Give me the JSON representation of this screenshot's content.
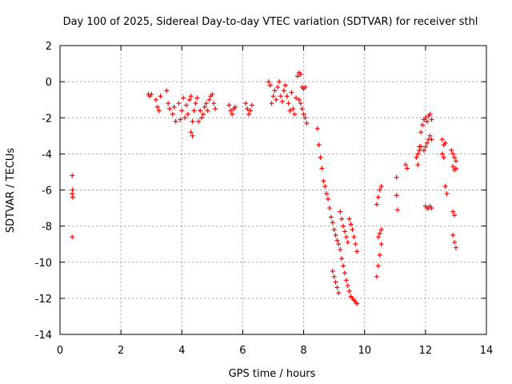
{
  "chart_data": {
    "type": "scatter",
    "title": "Day 100 of 2025, Sidereal Day-to-day VTEC variation (SDTVAR) for receiver sthl",
    "xlabel": "GPS time / hours",
    "ylabel": "SDTVAR / TECUs",
    "xlim": [
      0,
      14
    ],
    "ylim": [
      -14,
      2
    ],
    "xticks": [
      0,
      2,
      4,
      6,
      8,
      10,
      12,
      14
    ],
    "yticks": [
      2,
      0,
      -2,
      -4,
      -6,
      -8,
      -10,
      -12,
      -14
    ],
    "grid": true,
    "marker": "+",
    "color": "#ff0000",
    "series": [
      {
        "name": "SDTVAR",
        "x": [
          0.4,
          0.41,
          0.4,
          0.42,
          0.4,
          2.9,
          2.95,
          3.0,
          3.15,
          3.2,
          3.25,
          3.3,
          3.5,
          3.55,
          3.6,
          3.7,
          3.75,
          3.8,
          3.9,
          3.95,
          4.0,
          4.05,
          4.1,
          4.15,
          4.2,
          4.25,
          4.3,
          4.35,
          4.4,
          4.45,
          4.5,
          4.3,
          4.35,
          4.55,
          4.6,
          4.65,
          4.7,
          4.75,
          4.8,
          4.85,
          4.9,
          4.95,
          5.0,
          5.05,
          5.1,
          5.55,
          5.6,
          5.65,
          5.7,
          5.75,
          6.1,
          6.15,
          6.2,
          6.25,
          6.3,
          6.85,
          6.9,
          6.95,
          7.0,
          7.05,
          7.1,
          7.15,
          7.2,
          7.25,
          7.3,
          7.35,
          7.4,
          7.45,
          7.5,
          7.55,
          7.6,
          7.65,
          7.7,
          7.75,
          7.8,
          7.85,
          7.9,
          7.95,
          8.0,
          8.05,
          7.85,
          7.9,
          7.95,
          8.0,
          8.05,
          8.1,
          8.45,
          8.5,
          8.55,
          8.6,
          8.65,
          8.7,
          8.75,
          8.8,
          8.85,
          8.9,
          8.95,
          9.0,
          9.05,
          9.1,
          9.15,
          9.2,
          9.25,
          9.3,
          9.35,
          9.4,
          9.45,
          9.5,
          9.55,
          9.6,
          9.65,
          9.7,
          9.75,
          9.2,
          9.25,
          9.3,
          9.35,
          9.4,
          9.45,
          9.5,
          9.55,
          9.6,
          9.65,
          9.7,
          9.75,
          8.95,
          9.0,
          9.05,
          9.1,
          9.15,
          10.4,
          10.45,
          10.5,
          10.55,
          10.45,
          10.5,
          10.55,
          10.4,
          10.45,
          10.5,
          10.55,
          11.05,
          11.05,
          11.08,
          11.35,
          11.4,
          11.75,
          11.8,
          11.85,
          11.9,
          11.95,
          12.0,
          12.05,
          12.1,
          12.15,
          12.2,
          11.7,
          11.75,
          11.8,
          11.85,
          11.95,
          12.0,
          12.05,
          12.1,
          12.15,
          12.2,
          12.0,
          12.05,
          12.1,
          12.15,
          12.2,
          12.55,
          12.6,
          12.65,
          12.55,
          12.6,
          12.65,
          12.7,
          12.85,
          12.9,
          12.95,
          13.0,
          12.9,
          12.95,
          13.0,
          12.9,
          12.95,
          12.9,
          12.95,
          13.0
        ],
        "y": [
          -5.2,
          -6.0,
          -6.2,
          -6.4,
          -8.6,
          -0.7,
          -0.8,
          -0.7,
          -1.0,
          -1.4,
          -1.6,
          -0.8,
          -0.5,
          -1.2,
          -1.5,
          -1.8,
          -1.4,
          -2.2,
          -1.2,
          -2.1,
          -1.6,
          -0.9,
          -2.0,
          -1.3,
          -1.8,
          -1.0,
          -0.8,
          -2.2,
          -1.6,
          -1.2,
          -0.9,
          -2.8,
          -3.0,
          -2.2,
          -1.6,
          -2.0,
          -1.8,
          -1.4,
          -1.2,
          -1.6,
          -1.0,
          -0.8,
          -0.7,
          -1.2,
          -1.5,
          -1.3,
          -1.6,
          -1.8,
          -1.5,
          -1.4,
          -1.2,
          -1.5,
          -1.8,
          -1.6,
          -1.3,
          0.0,
          -0.2,
          -1.2,
          -0.8,
          -0.5,
          -1.0,
          -0.3,
          0.0,
          -0.8,
          -1.1,
          -0.5,
          -0.2,
          -0.8,
          -1.2,
          -1.6,
          -0.6,
          -1.5,
          -1.8,
          -0.9,
          0.3,
          0.5,
          0.4,
          -0.3,
          -0.4,
          -0.3,
          -1.0,
          -1.2,
          -1.5,
          -1.8,
          -2.0,
          -2.3,
          -2.6,
          -3.5,
          -4.2,
          -4.8,
          -5.5,
          -5.8,
          -6.2,
          -6.5,
          -7.0,
          -7.5,
          -7.8,
          -8.2,
          -8.5,
          -8.8,
          -9.0,
          -9.3,
          -9.8,
          -10.2,
          -10.6,
          -11.0,
          -11.3,
          -11.6,
          -11.9,
          -12.0,
          -12.1,
          -12.2,
          -12.3,
          -7.2,
          -7.6,
          -8.0,
          -8.3,
          -8.6,
          -8.9,
          -7.6,
          -7.9,
          -8.2,
          -8.6,
          -9.0,
          -9.4,
          -10.5,
          -10.8,
          -11.1,
          -11.4,
          -11.7,
          -10.8,
          -10.2,
          -9.6,
          -9.0,
          -8.6,
          -8.4,
          -8.2,
          -6.8,
          -6.4,
          -6.0,
          -5.8,
          -5.3,
          -6.3,
          -7.1,
          -4.6,
          -4.8,
          -4.6,
          -3.6,
          -2.8,
          -2.4,
          -2.1,
          -2.0,
          -2.2,
          -1.9,
          -1.8,
          -2.1,
          -4.2,
          -4.0,
          -3.8,
          -3.6,
          -3.8,
          -3.6,
          -3.4,
          -3.2,
          -3.0,
          -3.2,
          -6.9,
          -7.0,
          -7.0,
          -6.9,
          -7.0,
          -3.2,
          -3.5,
          -3.4,
          -4.0,
          -4.2,
          -5.8,
          -6.2,
          -3.8,
          -4.0,
          -4.2,
          -4.4,
          -4.7,
          -4.9,
          -4.8,
          -7.2,
          -7.4,
          -8.5,
          -8.9,
          -9.2
        ]
      }
    ]
  }
}
